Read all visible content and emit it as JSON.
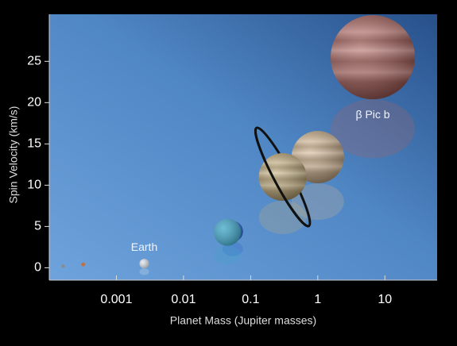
{
  "chart_data": {
    "type": "scatter",
    "xlabel": "Planet Mass (Jupiter masses)",
    "ylabel": "Spin Velocity (km/s)",
    "x": [
      0.00016,
      0.00032,
      0.0026,
      0.045,
      0.054,
      0.3,
      1.0,
      6.6
    ],
    "values": [
      0.2,
      0.4,
      0.5,
      4.3,
      4.4,
      11.0,
      13.4,
      25.5
    ],
    "labels": [
      null,
      null,
      "Earth",
      null,
      null,
      null,
      null,
      "β Pic b"
    ],
    "colors": [
      "#8a8a8a",
      "#c07040",
      "#dfe6ef",
      "#3fa6c8",
      "#2a5fcc",
      "#c9b07a",
      "#d8b890",
      "#b0605a"
    ],
    "xscale": "log",
    "xlim": [
      0.0001,
      60
    ],
    "xticks": [
      0.001,
      0.01,
      0.1,
      1,
      10
    ],
    "ylim": [
      -1.5,
      30.7
    ],
    "yticks": [
      0,
      5,
      10,
      15,
      20,
      25
    ]
  }
}
